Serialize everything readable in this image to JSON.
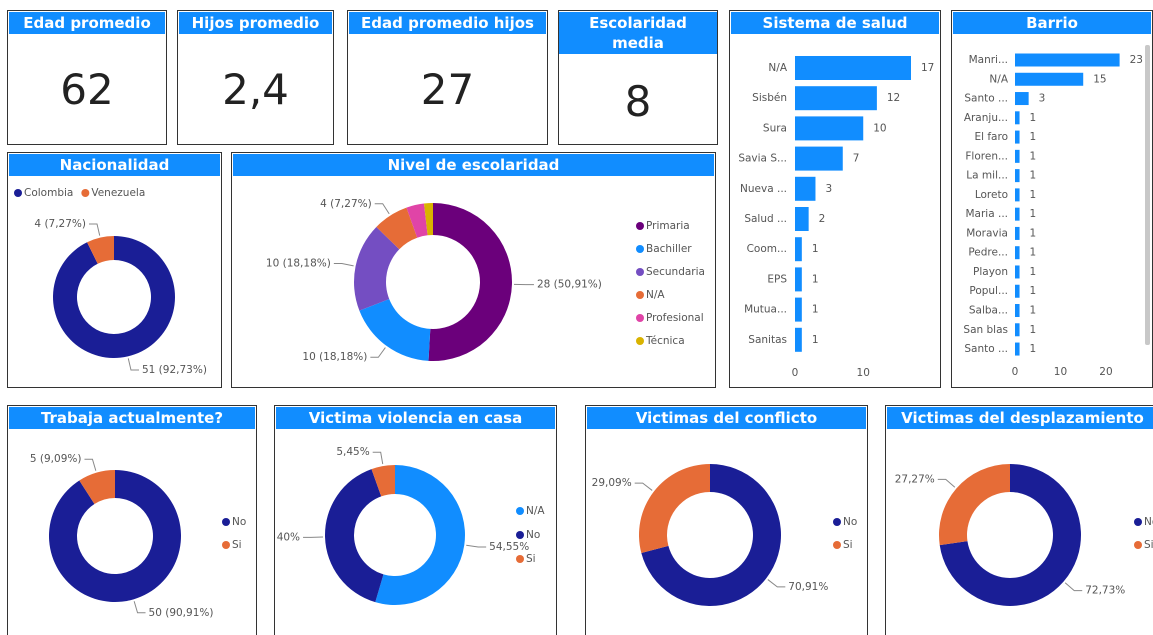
{
  "cards": [
    {
      "title": "Edad promedio",
      "value": "62"
    },
    {
      "title": "Hijos promedio",
      "value": "2,4"
    },
    {
      "title": "Edad promedio hijos",
      "value": "27"
    },
    {
      "title": "Escolaridad media",
      "value": "8"
    }
  ],
  "chart_data": [
    {
      "type": "bar",
      "orientation": "horizontal",
      "title": "Sistema de salud",
      "categories": [
        "N/A",
        "Sisbén",
        "Sura",
        "Savia S...",
        "Nueva ...",
        "Salud ...",
        "Coom...",
        "EPS",
        "Mutua...",
        "Sanitas"
      ],
      "values": [
        17,
        12,
        10,
        7,
        3,
        2,
        1,
        1,
        1,
        1
      ],
      "color": "#118DFF",
      "xlim": [
        0,
        17
      ],
      "xticks": [
        0,
        10
      ],
      "grid": false
    },
    {
      "type": "bar",
      "orientation": "horizontal",
      "title": "Barrio",
      "categories": [
        "Manri...",
        "N/A",
        "Santo ...",
        "Aranju...",
        "El faro",
        "Floren...",
        "La mil...",
        "Loreto",
        "Maria ...",
        "Moravia",
        "Pedre...",
        "Playon",
        "Popul...",
        "Salba...",
        "San blas",
        "Santo ..."
      ],
      "values": [
        23,
        15,
        3,
        1,
        1,
        1,
        1,
        1,
        1,
        1,
        1,
        1,
        1,
        1,
        1,
        1
      ],
      "color": "#118DFF",
      "xlim": [
        0,
        23
      ],
      "xticks": [
        0,
        10,
        20
      ],
      "grid": false
    },
    {
      "type": "pie",
      "donut": true,
      "title": "Nacionalidad",
      "categories": [
        "Colombia",
        "Venezuela"
      ],
      "values": [
        51,
        4
      ],
      "value_labels": [
        "51 (92,73%)",
        "4 (7,27%)"
      ],
      "colors": [
        "#1A1E96",
        "#E66C37"
      ],
      "legend": "top-left"
    },
    {
      "type": "pie",
      "donut": true,
      "title": "Nivel de escolaridad",
      "categories": [
        "Primaria",
        "Bachiller",
        "Secundaria",
        "N/A",
        "Profesional",
        "Técnica"
      ],
      "values": [
        28,
        10,
        10,
        4,
        2,
        1
      ],
      "value_labels": [
        "28 (50,91%)",
        "10 (18,18%)",
        "10 (18,18%)",
        "4 (7,27%)",
        null,
        null
      ],
      "colors": [
        "#6B007B",
        "#118DFF",
        "#744EC2",
        "#E66C37",
        "#E044A7",
        "#D9B300"
      ],
      "legend": "right"
    },
    {
      "type": "pie",
      "donut": true,
      "title": "Trabaja actualmente?",
      "categories": [
        "No",
        "Si"
      ],
      "values": [
        50,
        5
      ],
      "value_labels": [
        "50 (90,91%)",
        "5 (9,09%)"
      ],
      "colors": [
        "#1A1E96",
        "#E66C37"
      ],
      "legend": "right"
    },
    {
      "type": "pie",
      "donut": true,
      "title": "Victima violencia en casa",
      "categories": [
        "N/A",
        "No",
        "Si"
      ],
      "values": [
        54.55,
        40,
        5.45
      ],
      "value_labels": [
        "54,55%",
        "40%",
        "5,45%"
      ],
      "colors": [
        "#118DFF",
        "#1A1E96",
        "#E66C37"
      ],
      "legend": "right"
    },
    {
      "type": "pie",
      "donut": true,
      "title": "Victimas del conflicto",
      "categories": [
        "No",
        "Si"
      ],
      "values": [
        70.91,
        29.09
      ],
      "value_labels": [
        "70,91%",
        "29,09%"
      ],
      "colors": [
        "#1A1E96",
        "#E66C37"
      ],
      "legend": "right"
    },
    {
      "type": "pie",
      "donut": true,
      "title": "Victimas del desplazamiento",
      "categories": [
        "No",
        "Si"
      ],
      "values": [
        72.73,
        27.27
      ],
      "value_labels": [
        "72,73%",
        "27,27%"
      ],
      "colors": [
        "#1A1E96",
        "#E66C37"
      ],
      "legend": "right"
    }
  ]
}
